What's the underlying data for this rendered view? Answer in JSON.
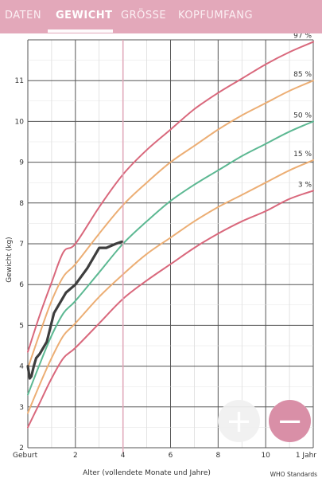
{
  "tabs": [
    {
      "label": "DATEN",
      "active": false
    },
    {
      "label": "GEWICHT",
      "active": true
    },
    {
      "label": "GRÖSSE",
      "active": false
    },
    {
      "label": "KOPFUMFANG",
      "active": false
    }
  ],
  "colors": {
    "tabbar": "#e3a8ba",
    "p97": "#d9687c",
    "p85": "#ecae74",
    "p50": "#5cb892",
    "p15": "#ecae74",
    "p3": "#d9687c",
    "child": "#3d3d3d",
    "current": "#e3a8ba"
  },
  "chart_data": {
    "type": "line",
    "title": "",
    "xlabel": "Alter (vollendete Monate und Jahre)",
    "ylabel": "Gewicht (kg)",
    "source": "WHO Standards",
    "xlim": [
      0,
      12
    ],
    "ylim": [
      2,
      12
    ],
    "x_ticks": [
      {
        "value": 0,
        "label": "Geburt"
      },
      {
        "value": 2,
        "label": "2"
      },
      {
        "value": 4,
        "label": "4"
      },
      {
        "value": 6,
        "label": "6"
      },
      {
        "value": 8,
        "label": "8"
      },
      {
        "value": 10,
        "label": "10"
      },
      {
        "value": 12,
        "label": "1 Jahr"
      }
    ],
    "y_ticks": [
      2,
      3,
      4,
      5,
      6,
      7,
      8,
      9,
      10,
      11
    ],
    "current_month": 4,
    "x": [
      0,
      0.5,
      1,
      1.5,
      2,
      3,
      4,
      5,
      6,
      7,
      8,
      9,
      10,
      11,
      12
    ],
    "series": [
      {
        "name": "97 %",
        "key": "p97",
        "values": [
          4.35,
          5.25,
          6.05,
          6.8,
          7.0,
          7.9,
          8.7,
          9.3,
          9.8,
          10.3,
          10.7,
          11.05,
          11.4,
          11.7,
          11.95
        ]
      },
      {
        "name": "85 %",
        "key": "p85",
        "values": [
          3.95,
          4.8,
          5.6,
          6.2,
          6.5,
          7.25,
          7.95,
          8.5,
          9.0,
          9.4,
          9.8,
          10.15,
          10.45,
          10.75,
          11.0
        ]
      },
      {
        "name": "50 %",
        "key": "p50",
        "values": [
          3.3,
          4.05,
          4.75,
          5.3,
          5.6,
          6.3,
          7.0,
          7.55,
          8.05,
          8.45,
          8.8,
          9.15,
          9.45,
          9.75,
          10.0
        ]
      },
      {
        "name": "15 %",
        "key": "p15",
        "values": [
          2.85,
          3.55,
          4.2,
          4.75,
          5.05,
          5.7,
          6.25,
          6.75,
          7.15,
          7.55,
          7.9,
          8.2,
          8.5,
          8.8,
          9.05
        ]
      },
      {
        "name": "3 %",
        "key": "p3",
        "values": [
          2.5,
          3.1,
          3.7,
          4.2,
          4.45,
          5.05,
          5.65,
          6.1,
          6.5,
          6.9,
          7.25,
          7.55,
          7.8,
          8.1,
          8.3
        ]
      }
    ],
    "child": {
      "x": [
        0,
        0.08,
        0.15,
        0.25,
        0.35,
        0.5,
        0.8,
        1.1,
        1.6,
        2.0,
        2.5,
        3.0,
        3.3,
        3.7,
        3.95
      ],
      "y": [
        4.0,
        3.7,
        3.75,
        4.0,
        4.2,
        4.3,
        4.6,
        5.3,
        5.8,
        6.0,
        6.4,
        6.9,
        6.9,
        7.0,
        7.05
      ]
    }
  },
  "fab": {
    "add_label": "+",
    "remove_label": "−"
  }
}
